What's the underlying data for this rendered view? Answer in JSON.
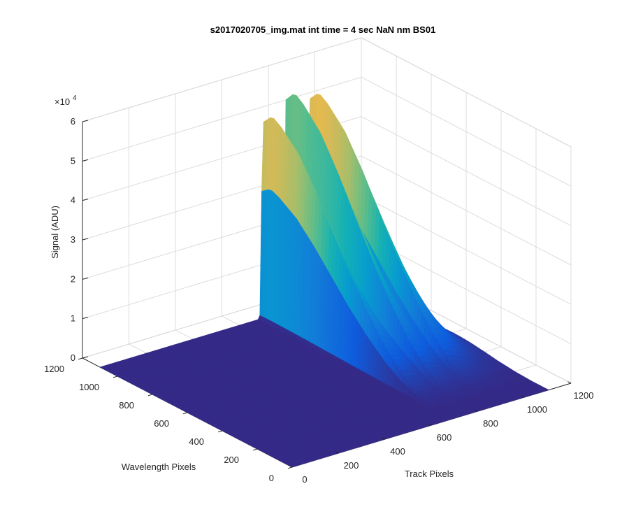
{
  "chart_data": {
    "type": "surface",
    "title": "s2017020705_img.mat int time = 4 sec  NaN nm BS01",
    "xlabel": "Track Pixels",
    "ylabel": "Wavelength Pixels",
    "zlabel": "Signal (ADU)",
    "xlim": [
      0,
      1200
    ],
    "ylim": [
      0,
      1200
    ],
    "zlim": [
      0,
      60000
    ],
    "x_ticks": [
      0,
      200,
      400,
      600,
      800,
      1000,
      1200
    ],
    "y_ticks": [
      0,
      200,
      400,
      600,
      800,
      1000,
      1200
    ],
    "z_ticks": [
      0,
      1,
      2,
      3,
      4,
      5,
      6
    ],
    "z_exponent_label": "×10",
    "z_exponent": "4",
    "grid": true,
    "colormap": "parula",
    "baseline_color": "#352a87",
    "data_extent": {
      "x": [
        0,
        1100
      ],
      "y": [
        0,
        1100
      ]
    },
    "peaks": [
      {
        "track": 700,
        "peak_signal": 53000
      },
      {
        "track": 800,
        "peak_signal": 56500
      },
      {
        "track": 900,
        "peak_signal": 55500
      }
    ],
    "signal_onset_wavelength_pixel": 1100,
    "profile_along_wavelength": [
      {
        "wavelength": 1100,
        "relative_signal": 0.95
      },
      {
        "wavelength": 1050,
        "relative_signal": 1.0
      },
      {
        "wavelength": 1000,
        "relative_signal": 0.97
      },
      {
        "wavelength": 900,
        "relative_signal": 0.88
      },
      {
        "wavelength": 800,
        "relative_signal": 0.74
      },
      {
        "wavelength": 700,
        "relative_signal": 0.58
      },
      {
        "wavelength": 600,
        "relative_signal": 0.42
      },
      {
        "wavelength": 500,
        "relative_signal": 0.28
      },
      {
        "wavelength": 400,
        "relative_signal": 0.16
      },
      {
        "wavelength": 300,
        "relative_signal": 0.07
      },
      {
        "wavelength": 200,
        "relative_signal": 0.02
      },
      {
        "wavelength": 100,
        "relative_signal": 0.0
      }
    ]
  }
}
